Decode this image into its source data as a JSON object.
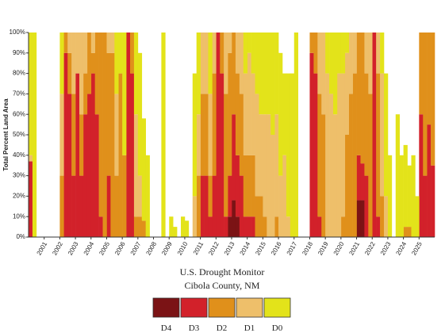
{
  "chart_data": {
    "type": "stacked-area-step",
    "title": "U.S. Drought Monitor",
    "subtitle": "Cibola County, NM",
    "y_label": "Total Percent Land Area",
    "x": [
      2000,
      2000.25,
      2000.5,
      2000.75,
      2001,
      2001.25,
      2001.5,
      2001.75,
      2002,
      2002.25,
      2002.5,
      2002.75,
      2003,
      2003.25,
      2003.5,
      2003.75,
      2004,
      2004.25,
      2004.5,
      2004.75,
      2005,
      2005.25,
      2005.5,
      2005.75,
      2006,
      2006.25,
      2006.5,
      2006.75,
      2007,
      2007.25,
      2007.5,
      2007.75,
      2008,
      2008.25,
      2008.5,
      2008.75,
      2009,
      2009.25,
      2009.5,
      2009.75,
      2010,
      2010.25,
      2010.5,
      2010.75,
      2011,
      2011.25,
      2011.5,
      2011.75,
      2012,
      2012.25,
      2012.5,
      2012.75,
      2013,
      2013.25,
      2013.5,
      2013.75,
      2014,
      2014.25,
      2014.5,
      2014.75,
      2015,
      2015.25,
      2015.5,
      2015.75,
      2016,
      2016.25,
      2016.5,
      2016.75,
      2017,
      2017.25,
      2017.5,
      2017.75,
      2018,
      2018.25,
      2018.5,
      2018.75,
      2019,
      2019.25,
      2019.5,
      2019.75,
      2020,
      2020.25,
      2020.5,
      2020.75,
      2021,
      2021.25,
      2021.5,
      2021.75,
      2022,
      2022.25,
      2022.5,
      2022.75,
      2023,
      2023.25,
      2023.5,
      2023.75,
      2024,
      2024.25,
      2024.5,
      2024.75,
      2025,
      2025.25,
      2025.5,
      2025.75
    ],
    "xlim": [
      2000,
      2026
    ],
    "xticks": [
      2001,
      2002,
      2003,
      2004,
      2005,
      2006,
      2007,
      2008,
      2009,
      2010,
      2011,
      2012,
      2013,
      2014,
      2015,
      2016,
      2017,
      2018,
      2019,
      2020,
      2021,
      2022,
      2023,
      2024,
      2025
    ],
    "ylim": [
      0,
      100
    ],
    "yticks": [
      {
        "value": 0,
        "label": "0%"
      },
      {
        "value": 10,
        "label": "10%"
      },
      {
        "value": 20,
        "label": "20%"
      },
      {
        "value": 30,
        "label": "30%"
      },
      {
        "value": 40,
        "label": "40%"
      },
      {
        "value": 50,
        "label": "50%"
      },
      {
        "value": 60,
        "label": "60%"
      },
      {
        "value": 70,
        "label": "70%"
      },
      {
        "value": 80,
        "label": "80%"
      },
      {
        "value": 90,
        "label": "90%"
      },
      {
        "value": 100,
        "label": "100%"
      }
    ],
    "series": [
      {
        "name": "D4",
        "color": "#7b1315",
        "values": [
          0,
          0,
          0,
          0,
          0,
          0,
          0,
          0,
          0,
          0,
          0,
          0,
          0,
          0,
          0,
          0,
          0,
          0,
          0,
          0,
          0,
          0,
          0,
          0,
          0,
          0,
          0,
          0,
          0,
          0,
          0,
          0,
          0,
          0,
          0,
          0,
          0,
          0,
          0,
          0,
          0,
          0,
          0,
          0,
          0,
          0,
          0,
          0,
          0,
          0,
          0,
          10,
          18,
          10,
          0,
          0,
          0,
          0,
          0,
          0,
          0,
          0,
          0,
          0,
          0,
          0,
          0,
          0,
          0,
          0,
          0,
          0,
          0,
          0,
          0,
          0,
          0,
          0,
          0,
          0,
          0,
          0,
          0,
          0,
          18,
          18,
          0,
          0,
          0,
          0,
          0,
          0,
          0,
          0,
          0,
          0,
          0,
          0,
          0,
          0,
          0,
          0,
          0,
          0
        ]
      },
      {
        "name": "D3",
        "color": "#d2212a",
        "values": [
          37,
          0,
          0,
          0,
          0,
          0,
          0,
          0,
          0,
          90,
          70,
          30,
          80,
          30,
          60,
          70,
          80,
          60,
          10,
          0,
          30,
          0,
          0,
          0,
          0,
          100,
          80,
          0,
          0,
          0,
          0,
          0,
          0,
          0,
          0,
          0,
          0,
          0,
          0,
          0,
          0,
          0,
          0,
          0,
          30,
          30,
          10,
          30,
          100,
          80,
          10,
          20,
          42,
          30,
          30,
          10,
          10,
          10,
          0,
          0,
          0,
          0,
          0,
          0,
          0,
          0,
          0,
          0,
          0,
          0,
          0,
          0,
          90,
          80,
          10,
          0,
          0,
          0,
          0,
          0,
          0,
          0,
          0,
          0,
          22,
          18,
          30,
          0,
          100,
          10,
          0,
          0,
          0,
          0,
          0,
          0,
          0,
          0,
          0,
          0,
          60,
          30,
          55,
          35
        ]
      },
      {
        "name": "D2",
        "color": "#e0901b",
        "values": [
          0,
          0,
          0,
          0,
          0,
          0,
          0,
          0,
          30,
          10,
          20,
          40,
          0,
          30,
          20,
          30,
          10,
          40,
          90,
          100,
          60,
          90,
          30,
          80,
          40,
          0,
          20,
          10,
          10,
          8,
          0,
          0,
          0,
          0,
          0,
          0,
          0,
          0,
          0,
          0,
          0,
          0,
          0,
          30,
          40,
          40,
          20,
          50,
          0,
          20,
          60,
          60,
          40,
          40,
          40,
          30,
          30,
          30,
          20,
          20,
          10,
          0,
          0,
          10,
          0,
          0,
          0,
          0,
          0,
          0,
          0,
          0,
          10,
          20,
          60,
          60,
          0,
          0,
          0,
          0,
          10,
          50,
          70,
          80,
          60,
          64,
          50,
          70,
          0,
          70,
          20,
          0,
          0,
          0,
          0,
          0,
          5,
          5,
          0,
          0,
          40,
          70,
          45,
          65
        ]
      },
      {
        "name": "D1",
        "color": "#eebf6a",
        "values": [
          3,
          0,
          0,
          0,
          0,
          0,
          0,
          0,
          40,
          0,
          10,
          30,
          20,
          40,
          20,
          0,
          10,
          0,
          0,
          0,
          10,
          10,
          40,
          0,
          0,
          0,
          0,
          50,
          20,
          0,
          0,
          0,
          0,
          0,
          0,
          0,
          0,
          0,
          0,
          0,
          0,
          0,
          20,
          30,
          30,
          30,
          40,
          20,
          0,
          0,
          30,
          10,
          0,
          20,
          30,
          40,
          50,
          40,
          50,
          40,
          50,
          60,
          50,
          50,
          30,
          40,
          10,
          0,
          0,
          0,
          0,
          0,
          0,
          0,
          30,
          40,
          80,
          70,
          60,
          80,
          70,
          40,
          30,
          20,
          0,
          0,
          20,
          30,
          0,
          20,
          60,
          20,
          0,
          0,
          0,
          0,
          0,
          0,
          0,
          0,
          0,
          0,
          0,
          0
        ]
      },
      {
        "name": "D0",
        "color": "#e3e31a",
        "values": [
          60,
          100,
          0,
          0,
          0,
          0,
          0,
          0,
          30,
          0,
          0,
          0,
          0,
          0,
          0,
          0,
          0,
          0,
          0,
          0,
          0,
          0,
          30,
          20,
          60,
          0,
          0,
          40,
          60,
          50,
          40,
          0,
          0,
          0,
          100,
          0,
          10,
          5,
          0,
          10,
          8,
          0,
          60,
          40,
          0,
          0,
          30,
          0,
          0,
          0,
          0,
          0,
          0,
          0,
          0,
          20,
          10,
          20,
          30,
          40,
          40,
          40,
          50,
          40,
          60,
          40,
          70,
          80,
          100,
          0,
          0,
          0,
          0,
          0,
          0,
          0,
          20,
          30,
          40,
          20,
          20,
          10,
          0,
          0,
          0,
          0,
          0,
          0,
          0,
          0,
          20,
          60,
          40,
          0,
          60,
          40,
          40,
          30,
          40,
          20,
          0,
          0,
          0,
          0
        ]
      }
    ]
  }
}
